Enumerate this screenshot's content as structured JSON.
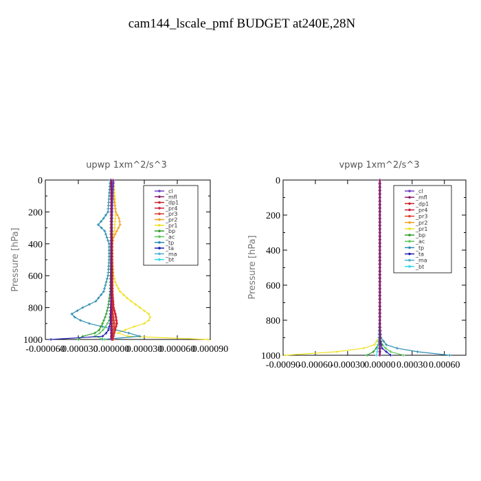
{
  "title": "cam144_lscale_pmf  BUDGET at240E,28N",
  "colors": {
    "cl": "#6a3fc4",
    "mfl": "#8b1a6b",
    "dp1": "#d0202a",
    "pr4": "#c81e3c",
    "pr3": "#e23a2a",
    "pr2": "#f0a020",
    "pr1": "#f0e020",
    "bp": "#2e9e2e",
    "ac": "#5ac85a",
    "tp": "#2a8ab0",
    "ta": "#1a1ab0",
    "ma": "#4ab0d0",
    "bt": "#30d8e8"
  },
  "chart_data": [
    {
      "type": "line",
      "title": "upwp   1xm^2/s^3",
      "ylabel": "Pressure [hPa]",
      "xlabel": "",
      "xlim": [
        -6e-05,
        9e-05
      ],
      "ylim": [
        1000,
        0
      ],
      "yticks": [
        0,
        200,
        400,
        600,
        800,
        1000
      ],
      "xticks": [
        -6e-05,
        -3e-05,
        0,
        3e-05,
        6e-05,
        9e-05
      ],
      "xtick_labels": [
        "-0.000060",
        "-0.000030",
        "0.000000",
        "0.000030",
        "0.000060",
        "0.000090"
      ],
      "ytick_labels": [
        "0",
        "200",
        "400",
        "600",
        "800",
        "1000"
      ],
      "legend": [
        "_cl",
        "_mfl",
        "_dp1",
        "_pr4",
        "_pr3",
        "_pr2",
        "_pr1",
        "_bp",
        "_ac",
        "_tp",
        "_ta",
        "_ma",
        "_bt"
      ],
      "legend_position": "top-right",
      "series": [
        {
          "key": "pr1",
          "p": [
            0,
            100,
            200,
            300,
            400,
            500,
            600,
            650,
            700,
            750,
            800,
            840,
            870,
            900,
            930,
            960,
            980,
            990,
            1000
          ],
          "x": [
            2e-06,
            3e-06,
            4e-06,
            3e-06,
            1e-06,
            1e-06,
            2e-06,
            4e-06,
            8e-06,
            1.6e-05,
            2.6e-05,
            3.4e-05,
            3.6e-05,
            3e-05,
            1.6e-05,
            6e-06,
            1.5e-05,
            6e-05,
            8.8e-05
          ]
        },
        {
          "key": "pr2",
          "p": [
            0,
            100,
            200,
            240,
            280,
            320,
            360,
            400,
            500,
            1000
          ],
          "x": [
            1e-06,
            2e-06,
            4e-06,
            7e-06,
            8e-06,
            5e-06,
            2e-06,
            1e-06,
            1e-06,
            1e-06
          ]
        },
        {
          "key": "tp",
          "p": [
            0,
            100,
            200,
            250,
            280,
            320,
            400,
            500,
            600,
            700,
            760,
            800,
            840,
            870,
            900,
            920,
            940,
            960,
            980,
            990,
            1000
          ],
          "x": [
            -1e-06,
            -2e-06,
            -3e-06,
            -8e-06,
            -1.2e-05,
            -6e-06,
            -2e-06,
            -2e-06,
            -3e-06,
            -7e-06,
            -1.4e-05,
            -2.6e-05,
            -3.6e-05,
            -3.2e-05,
            -2e-05,
            -8e-06,
            4e-06,
            1.6e-05,
            2.6e-05,
            1.6e-05,
            -8e-06
          ]
        },
        {
          "key": "bp",
          "p": [
            0,
            700,
            800,
            850,
            900,
            940,
            970,
            990,
            1000
          ],
          "x": [
            0,
            -1e-06,
            -3e-06,
            -5e-06,
            -8e-06,
            -1.1e-05,
            -1.7e-05,
            -3.5e-05,
            -3e-05
          ]
        },
        {
          "key": "ac",
          "p": [
            0,
            800,
            880,
            930,
            970,
            990,
            1000
          ],
          "x": [
            0,
            0,
            -2e-06,
            -6e-06,
            -1.2e-05,
            -1.8e-05,
            -6e-06
          ]
        },
        {
          "key": "ta",
          "p": [
            0,
            200,
            500,
            900,
            950,
            980,
            1000
          ],
          "x": [
            0,
            0,
            0,
            -1e-06,
            -3e-06,
            -8e-06,
            -5.5e-05
          ]
        },
        {
          "key": "dp1",
          "p": [
            0,
            700,
            800,
            850,
            900,
            950,
            1000
          ],
          "x": [
            0,
            1e-06,
            2e-06,
            4e-06,
            5e-06,
            3e-06,
            1e-06
          ]
        },
        {
          "key": "pr4",
          "p": [
            0,
            800,
            900,
            1000
          ],
          "x": [
            0,
            1e-06,
            2e-06,
            1e-06
          ]
        },
        {
          "key": "pr3",
          "p": [
            0,
            800,
            900,
            1000
          ],
          "x": [
            0,
            1e-06,
            3e-06,
            2e-06
          ]
        },
        {
          "key": "cl",
          "p": [
            0,
            100,
            400,
            700,
            1000
          ],
          "x": [
            2e-06,
            1e-06,
            0,
            0,
            0
          ]
        },
        {
          "key": "mfl",
          "p": [
            0,
            500,
            1000
          ],
          "x": [
            0,
            0,
            0
          ]
        }
      ]
    },
    {
      "type": "line",
      "title": "vpwp   1xm^2/s^3",
      "ylabel": "Pressure [hPa]",
      "xlabel": "",
      "xlim": [
        -0.0009,
        0.0008
      ],
      "ylim": [
        1000,
        0
      ],
      "yticks": [
        0,
        200,
        400,
        600,
        800,
        1000
      ],
      "xticks": [
        -0.0009,
        -0.0006,
        -0.0003,
        0,
        0.0003,
        0.0006
      ],
      "xtick_labels": [
        "-0.00090",
        "-0.00060",
        "-0.00030",
        "0.00000",
        "0.00030",
        "0.00060"
      ],
      "ytick_labels": [
        "0",
        "200",
        "400",
        "600",
        "800",
        "1000"
      ],
      "legend": [
        "_cl",
        "_mfl",
        "_dp1",
        "_pr4",
        "_pr3",
        "_pr2",
        "_pr1",
        "_bp",
        "_ac",
        "_tp",
        "_ta",
        "_ma",
        "_bt"
      ],
      "legend_position": "top-right",
      "series": [
        {
          "key": "pr1",
          "p": [
            0,
            800,
            900,
            940,
            960,
            980,
            1000
          ],
          "x": [
            0,
            0,
            -1e-05,
            -5e-05,
            -0.00015,
            -0.0004,
            -0.00088
          ]
        },
        {
          "key": "tp",
          "p": [
            0,
            800,
            900,
            940,
            960,
            980,
            1000
          ],
          "x": [
            0,
            0,
            1e-05,
            6e-05,
            0.00016,
            0.00035,
            0.00065
          ]
        },
        {
          "key": "ac",
          "p": [
            0,
            900,
            950,
            980,
            1000
          ],
          "x": [
            0,
            0,
            3e-05,
            0.0001,
            0.00022
          ]
        },
        {
          "key": "bp",
          "p": [
            0,
            900,
            950,
            980,
            1000
          ],
          "x": [
            0,
            0,
            -2e-05,
            -6e-05,
            -0.00012
          ]
        },
        {
          "key": "ta",
          "p": [
            0,
            900,
            960,
            1000
          ],
          "x": [
            0,
            0,
            2e-05,
            0.0001
          ]
        },
        {
          "key": "bt",
          "p": [
            0,
            800,
            900,
            960,
            1000
          ],
          "x": [
            0,
            -5e-06,
            -1e-05,
            -2e-05,
            -3e-05
          ]
        },
        {
          "key": "dp1",
          "p": [
            0,
            500,
            1000
          ],
          "x": [
            0,
            0,
            0
          ]
        },
        {
          "key": "cl",
          "p": [
            0,
            500,
            1000
          ],
          "x": [
            0,
            0,
            0
          ]
        },
        {
          "key": "mfl",
          "p": [
            0,
            500,
            1000
          ],
          "x": [
            0,
            0,
            0
          ]
        }
      ]
    }
  ]
}
